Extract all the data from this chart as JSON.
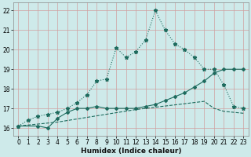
{
  "xlabel": "Humidex (Indice chaleur)",
  "color": "#1e6b5e",
  "bg_color": "#ceeaea",
  "grid_color_h": "#d0a0a0",
  "grid_color_v": "#d0a0a0",
  "ylim": [
    15.6,
    22.4
  ],
  "xlim": [
    -0.5,
    23.5
  ],
  "yticks": [
    16,
    17,
    18,
    19,
    20,
    21,
    22
  ],
  "xticks": [
    0,
    1,
    2,
    3,
    4,
    5,
    6,
    7,
    8,
    9,
    10,
    11,
    12,
    13,
    14,
    15,
    16,
    17,
    18,
    19,
    20,
    21,
    22,
    23
  ],
  "line_top_x": [
    0,
    1,
    2,
    3,
    4,
    5,
    6,
    7,
    8,
    9,
    10,
    11,
    12,
    13,
    14,
    15,
    16,
    17,
    18,
    19,
    20,
    21,
    22,
    23
  ],
  "line_top_y": [
    16.1,
    16.4,
    16.6,
    16.7,
    16.8,
    17.0,
    17.3,
    17.7,
    18.4,
    18.5,
    20.1,
    19.6,
    19.9,
    20.5,
    22.0,
    21.0,
    20.3,
    20.0,
    19.6,
    19.0,
    19.0,
    18.2,
    17.1,
    17.0
  ],
  "line_mid_x": [
    0,
    2,
    3,
    4,
    5,
    6,
    7,
    8,
    9,
    10,
    11,
    12,
    13,
    14,
    15,
    16,
    17,
    18,
    19,
    20,
    21,
    22,
    23
  ],
  "line_mid_y": [
    16.1,
    16.1,
    16.0,
    16.5,
    16.8,
    17.0,
    17.0,
    17.1,
    17.0,
    17.0,
    17.0,
    17.0,
    17.1,
    17.2,
    17.4,
    17.6,
    17.8,
    18.1,
    18.4,
    18.8,
    19.0,
    19.0,
    19.0
  ],
  "line_bot_x": [
    0,
    1,
    2,
    3,
    4,
    5,
    6,
    7,
    8,
    9,
    10,
    11,
    12,
    13,
    14,
    15,
    16,
    17,
    18,
    19,
    20,
    21,
    22,
    23
  ],
  "line_bot_y": [
    16.1,
    16.15,
    16.2,
    16.25,
    16.3,
    16.38,
    16.46,
    16.54,
    16.62,
    16.7,
    16.78,
    16.86,
    16.94,
    17.0,
    17.06,
    17.12,
    17.18,
    17.24,
    17.3,
    17.36,
    17.0,
    16.85,
    16.8,
    16.75
  ]
}
